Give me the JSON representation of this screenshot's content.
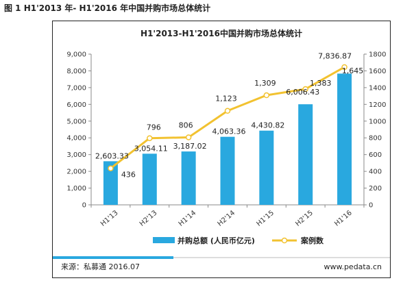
{
  "figure_caption": "图 1 H1'2013 年- H1'2016 年中国并购市场总体统计",
  "footer": {
    "source": "来源：私募通 2016.07",
    "website": "www.pedata.cn"
  },
  "colors": {
    "bar": "#29a8df",
    "line": "#f2c230",
    "marker_fill": "#ffffff",
    "footer_bar": "#29a8df",
    "axis": "#8a8a8a"
  },
  "chart_data": {
    "type": "bar",
    "title": "H1'2013-H1'2016中国并购市场总体统计",
    "categories": [
      "H1'13",
      "H2'13",
      "H1'14",
      "H2'14",
      "H1'15",
      "H2'15",
      "H1'16"
    ],
    "series": [
      {
        "name": "并购总额 (人民币亿元)",
        "type": "bar",
        "axis": "left",
        "values": [
          2603.33,
          3054.11,
          3187.02,
          4063.36,
          4430.82,
          6006.43,
          7836.87
        ],
        "labels": [
          "2,603.33",
          "3,054.11",
          "3,187.02",
          "4,063.36",
          "4,430.82",
          "6,006.43",
          "7,836.87"
        ]
      },
      {
        "name": "案例数",
        "type": "line",
        "axis": "right",
        "values": [
          436,
          796,
          806,
          1123,
          1309,
          1383,
          1645
        ],
        "labels": [
          "436",
          "796",
          "806",
          "1,123",
          "1,309",
          "1,383",
          "1,645"
        ]
      }
    ],
    "y_left": {
      "lim": [
        0,
        9000
      ],
      "ticks": [
        0,
        1000,
        2000,
        3000,
        4000,
        5000,
        6000,
        7000,
        8000,
        9000
      ],
      "tick_labels": [
        "0",
        "1,000",
        "2,000",
        "3,000",
        "4,000",
        "5,000",
        "6,000",
        "7,000",
        "8,000",
        "9,000"
      ]
    },
    "y_right": {
      "lim": [
        0,
        1800
      ],
      "ticks": [
        0,
        200,
        400,
        600,
        800,
        1000,
        1200,
        1400,
        1600,
        1800
      ],
      "tick_labels": [
        "0",
        "200",
        "400",
        "600",
        "800",
        "1000",
        "1200",
        "1400",
        "1600",
        "1800"
      ]
    },
    "grid": false,
    "legend_position": "bottom"
  }
}
